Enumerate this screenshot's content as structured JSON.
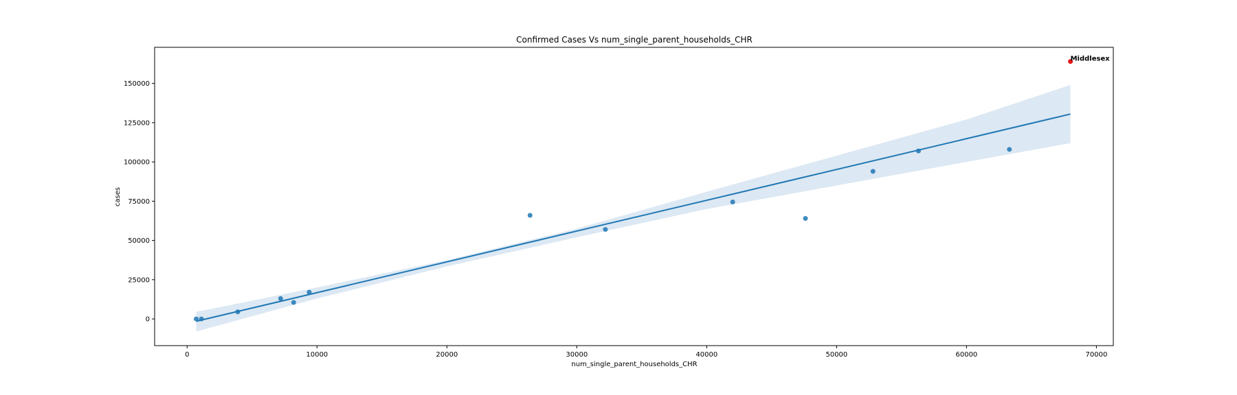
{
  "chart_data": {
    "type": "scatter",
    "title": "Confirmed Cases Vs num_single_parent_households_CHR",
    "xlabel": "num_single_parent_households_CHR",
    "ylabel": "cases",
    "xlim": [
      -2500,
      71300
    ],
    "ylim": [
      -17000,
      173000
    ],
    "x_ticks": [
      0,
      10000,
      20000,
      30000,
      40000,
      50000,
      60000,
      70000
    ],
    "y_ticks": [
      0,
      25000,
      50000,
      75000,
      100000,
      125000,
      150000
    ],
    "grid": false,
    "series": [
      {
        "points": [
          {
            "x": 700,
            "y": 0
          },
          {
            "x": 1100,
            "y": 0
          },
          {
            "x": 3900,
            "y": 4500
          },
          {
            "x": 7200,
            "y": 13000
          },
          {
            "x": 8200,
            "y": 10500
          },
          {
            "x": 9400,
            "y": 17000
          },
          {
            "x": 26400,
            "y": 66000
          },
          {
            "x": 32200,
            "y": 57000
          },
          {
            "x": 42000,
            "y": 74500
          },
          {
            "x": 47600,
            "y": 64000
          },
          {
            "x": 52800,
            "y": 94000
          },
          {
            "x": 56300,
            "y": 107000
          },
          {
            "x": 63300,
            "y": 108000
          }
        ],
        "color": "#1f77b4"
      }
    ],
    "regression": {
      "x_start": 700,
      "y_start": -1500,
      "x_end": 68000,
      "y_end": 130500,
      "ci_lower": [
        {
          "x": 700,
          "y": -8000
        },
        {
          "x": 10000,
          "y": 13000
        },
        {
          "x": 20000,
          "y": 33500
        },
        {
          "x": 30000,
          "y": 52000
        },
        {
          "x": 40000,
          "y": 70000
        },
        {
          "x": 50000,
          "y": 85000
        },
        {
          "x": 60000,
          "y": 100000
        },
        {
          "x": 68000,
          "y": 112000
        }
      ],
      "ci_upper": [
        {
          "x": 700,
          "y": 4500
        },
        {
          "x": 10000,
          "y": 20000
        },
        {
          "x": 20000,
          "y": 37500
        },
        {
          "x": 30000,
          "y": 57500
        },
        {
          "x": 40000,
          "y": 81000
        },
        {
          "x": 50000,
          "y": 104000
        },
        {
          "x": 60000,
          "y": 127000
        },
        {
          "x": 68000,
          "y": 149000
        }
      ],
      "line_color": "#1f77b4",
      "band_color": "#dce8f3"
    },
    "highlight": {
      "x": 68000,
      "y": 164000,
      "label": "Middlesex",
      "color": "#e8191b"
    }
  }
}
